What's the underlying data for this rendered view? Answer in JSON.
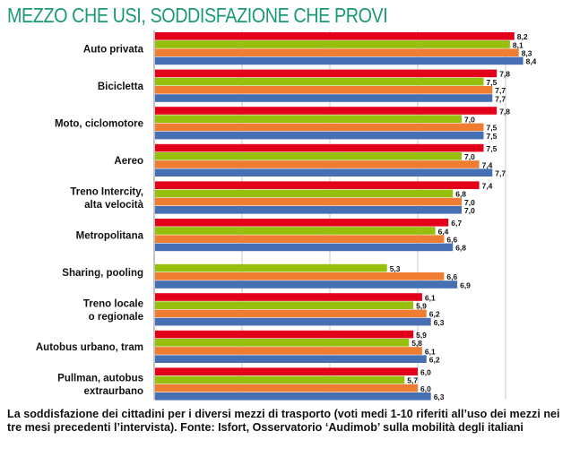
{
  "title": "MEZZO CHE USI, SODDISFAZIONE CHE PROVI",
  "caption": "La soddisfazione dei cittadini per i diversi mezzi di trasporto (voti medi 1-10 riferiti all’uso dei mezzi nei tre mesi precedenti l’intervista). Fonte: Isfort, Osservatorio ‘Audimob’ sulla mobilità degli italiani",
  "chart_data": {
    "type": "bar",
    "orientation": "horizontal",
    "title": "MEZZO CHE USI, SODDISFAZIONE CHE PROVI",
    "xlabel": "",
    "ylabel": "",
    "xlim": [
      0,
      8.8
    ],
    "gridlines": [
      2,
      4,
      6,
      8
    ],
    "grid": true,
    "legend": "none",
    "categories": [
      [
        "Auto privata"
      ],
      [
        "Bicicletta"
      ],
      [
        "Moto, ciclomotore"
      ],
      [
        "Aereo"
      ],
      [
        "Treno Intercity,",
        "alta velocità"
      ],
      [
        "Metropolitana"
      ],
      [
        "Sharing, pooling"
      ],
      [
        "Treno locale",
        "o regionale"
      ],
      [
        "Autobus urbano, tram"
      ],
      [
        "Pullman, autobus",
        "extraurbano"
      ]
    ],
    "series": [
      {
        "name": "series-red",
        "color": "#e2001a",
        "values": [
          8.2,
          7.8,
          7.8,
          7.5,
          7.4,
          6.7,
          null,
          6.1,
          5.9,
          6.0
        ],
        "labels": [
          "8,2",
          "7,8",
          "7,8",
          "7,5",
          "7,4",
          "6,7",
          null,
          "6,1",
          "5,9",
          "6,0"
        ]
      },
      {
        "name": "series-green",
        "color": "#97bf0d",
        "values": [
          8.1,
          7.5,
          7.0,
          7.0,
          6.8,
          6.4,
          5.3,
          5.9,
          5.8,
          5.7
        ],
        "labels": [
          "8,1",
          "7,5",
          "7,0",
          "7,0",
          "6,8",
          "6,4",
          "5,3",
          "5,9",
          "5,8",
          "5,7"
        ]
      },
      {
        "name": "series-orange",
        "color": "#ee7d31",
        "values": [
          8.3,
          7.7,
          7.5,
          7.4,
          7.0,
          6.6,
          6.6,
          6.2,
          6.1,
          6.0
        ],
        "labels": [
          "8,3",
          "7,7",
          "7,5",
          "7,4",
          "7,0",
          "6,6",
          "6,6",
          "6,2",
          "6,1",
          "6,0"
        ]
      },
      {
        "name": "series-blue",
        "color": "#4770b4",
        "values": [
          8.4,
          7.7,
          7.5,
          7.7,
          7.0,
          6.8,
          6.9,
          6.3,
          6.2,
          6.3
        ],
        "labels": [
          "8,4",
          "7,7",
          "7,5",
          "7,7",
          "7,0",
          "6,8",
          "6,9",
          "6,3",
          "6,2",
          "6,3"
        ]
      }
    ]
  }
}
